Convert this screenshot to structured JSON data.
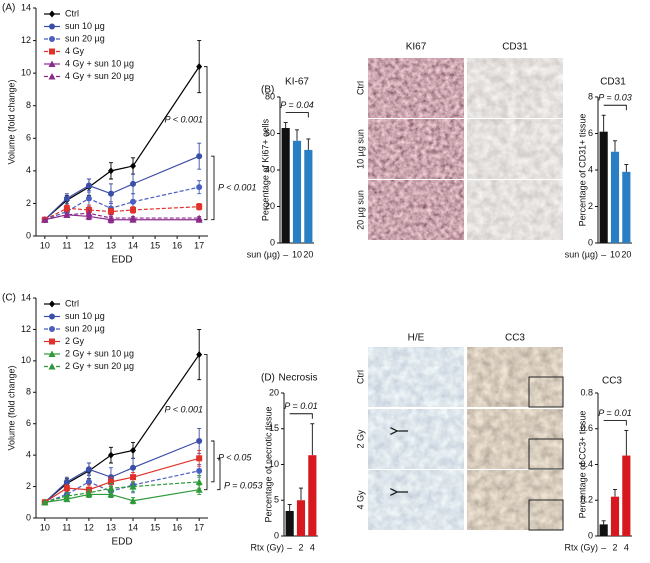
{
  "panel_labels": [
    "(A)",
    "(B)",
    "(C)",
    "(D)"
  ],
  "micrographs": [
    {
      "columns": [
        "KI67",
        "CD31"
      ],
      "rows": [
        "Ctrl",
        "10 µg sun",
        "20 µg sun"
      ]
    },
    {
      "columns": [
        "H/E",
        "CC3"
      ],
      "rows": [
        "Ctrl",
        "2 Gy",
        "4 Gy"
      ]
    }
  ],
  "chart_data": [
    {
      "type": "line",
      "xlabel": "EDD",
      "ylabel": "Volume (fold change)",
      "x": [
        10,
        11,
        12,
        13,
        14,
        17
      ],
      "xlim": [
        9.6,
        17.4
      ],
      "xticks": [
        10,
        11,
        12,
        13,
        14,
        15,
        16,
        17
      ],
      "ylim": [
        0,
        14
      ],
      "yticks": [
        0,
        2,
        4,
        6,
        8,
        10,
        12,
        14
      ],
      "series": [
        {
          "name": "Ctrl",
          "color": "#000000",
          "dashed": false,
          "marker": "diamond",
          "values": [
            1.0,
            2.2,
            3.0,
            4.0,
            4.3,
            10.4
          ],
          "errors": [
            null,
            0.3,
            0.5,
            0.5,
            0.5,
            1.6
          ]
        },
        {
          "name": "sun 10 µg",
          "color": "#3b4fa8",
          "dashed": false,
          "marker": "circle",
          "values": [
            1.0,
            2.3,
            3.1,
            2.6,
            3.2,
            4.9
          ],
          "errors": [
            null,
            0.3,
            0.4,
            0.6,
            0.6,
            0.8
          ]
        },
        {
          "name": "sun 20 µg",
          "color": "#4a5fc0",
          "dashed": true,
          "marker": "circle",
          "values": [
            1.0,
            1.5,
            2.3,
            1.7,
            2.1,
            3.0
          ],
          "errors": [
            null,
            0.3,
            0.5,
            0.4,
            0.5,
            0.4
          ]
        },
        {
          "name": "4 Gy",
          "color": "#e0322b",
          "dashed": true,
          "marker": "square",
          "values": [
            1.0,
            1.7,
            1.6,
            1.5,
            1.6,
            1.8
          ],
          "errors": [
            null,
            0.2,
            0.3,
            0.2,
            0.2,
            0.2
          ]
        },
        {
          "name": "4 Gy + sun 10 µg",
          "color": "#8b2c8c",
          "dashed": false,
          "marker": "triangle",
          "values": [
            1.0,
            1.3,
            1.2,
            1.0,
            1.0,
            1.0
          ],
          "errors": [
            null,
            0.1,
            0.2,
            0.2,
            0.1,
            0.1
          ]
        },
        {
          "name": "4 Gy + sun 20 µg",
          "color": "#8b2c8c",
          "dashed": true,
          "marker": "triangle",
          "values": [
            1.0,
            1.3,
            1.4,
            1.1,
            1.1,
            1.1
          ],
          "errors": [
            null,
            0.1,
            0.2,
            0.2,
            0.1,
            0.1
          ]
        }
      ],
      "annotations": [
        "P < 0.001",
        "P < 0.001"
      ]
    },
    {
      "type": "bar",
      "title": "KI-67",
      "ylabel": "Percentage of Ki67+ cells",
      "xlabel": "sun (µg)",
      "categories": [
        "–",
        "10",
        "20"
      ],
      "values": [
        63,
        56,
        51
      ],
      "errors": [
        3,
        6,
        6
      ],
      "colors": [
        "#111111",
        "#2a7fc4",
        "#2a7fc4"
      ],
      "ylim": [
        0,
        80
      ],
      "yticks": [
        0,
        20,
        40,
        60,
        80
      ],
      "annotation": "P = 0.04"
    },
    {
      "type": "bar",
      "title": "CD31",
      "ylabel": "Percentage of CD31+ tissue",
      "xlabel": "sun (µg)",
      "categories": [
        "–",
        "10",
        "20"
      ],
      "values": [
        6.1,
        5.0,
        3.9
      ],
      "errors": [
        0.9,
        0.6,
        0.4
      ],
      "colors": [
        "#111111",
        "#2a7fc4",
        "#2a7fc4"
      ],
      "ylim": [
        0,
        8
      ],
      "yticks": [
        0,
        2,
        4,
        6,
        8
      ],
      "annotation": "P = 0.03"
    },
    {
      "type": "line",
      "xlabel": "EDD",
      "ylabel": "Volume (fold change)",
      "x": [
        10,
        11,
        12,
        13,
        14,
        17
      ],
      "xlim": [
        9.6,
        17.4
      ],
      "xticks": [
        10,
        11,
        12,
        13,
        14,
        15,
        16,
        17
      ],
      "ylim": [
        0,
        14
      ],
      "yticks": [
        0,
        2,
        4,
        6,
        8,
        10,
        12,
        14
      ],
      "series": [
        {
          "name": "Ctrl",
          "color": "#000000",
          "dashed": false,
          "marker": "diamond",
          "values": [
            1.0,
            2.2,
            3.0,
            4.0,
            4.3,
            10.4
          ],
          "errors": [
            null,
            0.3,
            0.5,
            0.5,
            0.5,
            1.6
          ]
        },
        {
          "name": "sun 10 µg",
          "color": "#3b4fa8",
          "dashed": false,
          "marker": "circle",
          "values": [
            1.0,
            2.3,
            3.1,
            2.6,
            3.2,
            4.9
          ],
          "errors": [
            null,
            0.3,
            0.4,
            0.6,
            0.6,
            0.8
          ]
        },
        {
          "name": "sun 20 µg",
          "color": "#4a5fc0",
          "dashed": true,
          "marker": "circle",
          "values": [
            1.0,
            1.5,
            2.3,
            1.7,
            2.1,
            3.0
          ],
          "errors": [
            null,
            0.3,
            0.5,
            0.4,
            0.5,
            0.4
          ]
        },
        {
          "name": "2 Gy",
          "color": "#e0322b",
          "dashed": false,
          "marker": "square",
          "values": [
            1.0,
            1.9,
            1.8,
            2.3,
            2.6,
            3.8
          ],
          "errors": [
            null,
            0.2,
            0.3,
            0.3,
            0.3,
            0.5
          ]
        },
        {
          "name": "2 Gy + sun 10 µg",
          "color": "#2e9a3a",
          "dashed": false,
          "marker": "triangle",
          "values": [
            1.0,
            1.2,
            1.5,
            1.5,
            1.1,
            1.8
          ],
          "errors": [
            null,
            0.1,
            0.2,
            0.2,
            0.2,
            0.3
          ]
        },
        {
          "name": "2 Gy + sun 20 µg",
          "color": "#2e9a3a",
          "dashed": true,
          "marker": "triangle",
          "values": [
            1.0,
            1.4,
            1.6,
            1.9,
            2.0,
            2.3
          ],
          "errors": [
            null,
            0.2,
            0.2,
            0.3,
            0.3,
            0.4
          ]
        }
      ],
      "annotations": [
        "P < 0.001",
        "P < 0.05",
        "P = 0.053"
      ]
    },
    {
      "type": "bar",
      "title": "Necrosis",
      "ylabel": "Percentage of necrotic tissue",
      "xlabel": "Rtx (Gy)",
      "categories": [
        "–",
        "2",
        "4"
      ],
      "values": [
        3.5,
        5.0,
        11.3
      ],
      "errors": [
        0.9,
        1.7,
        4.4
      ],
      "colors": [
        "#111111",
        "#d7191f",
        "#d7191f"
      ],
      "ylim": [
        0,
        20
      ],
      "yticks": [
        0,
        5,
        10,
        15,
        20
      ],
      "annotation": "P = 0.01"
    },
    {
      "type": "bar",
      "title": "CC3",
      "ylabel": "Percentage of CC3+ tissue",
      "xlabel": "Rtx (Gy)",
      "categories": [
        "–",
        "2",
        "4"
      ],
      "values": [
        0.065,
        0.22,
        0.45
      ],
      "errors": [
        0.02,
        0.04,
        0.14
      ],
      "colors": [
        "#111111",
        "#d7191f",
        "#d7191f"
      ],
      "ylim": [
        0,
        0.8
      ],
      "yticks": [
        0,
        0.2,
        0.4,
        0.6,
        0.8
      ],
      "annotation": "P = 0.01"
    }
  ]
}
